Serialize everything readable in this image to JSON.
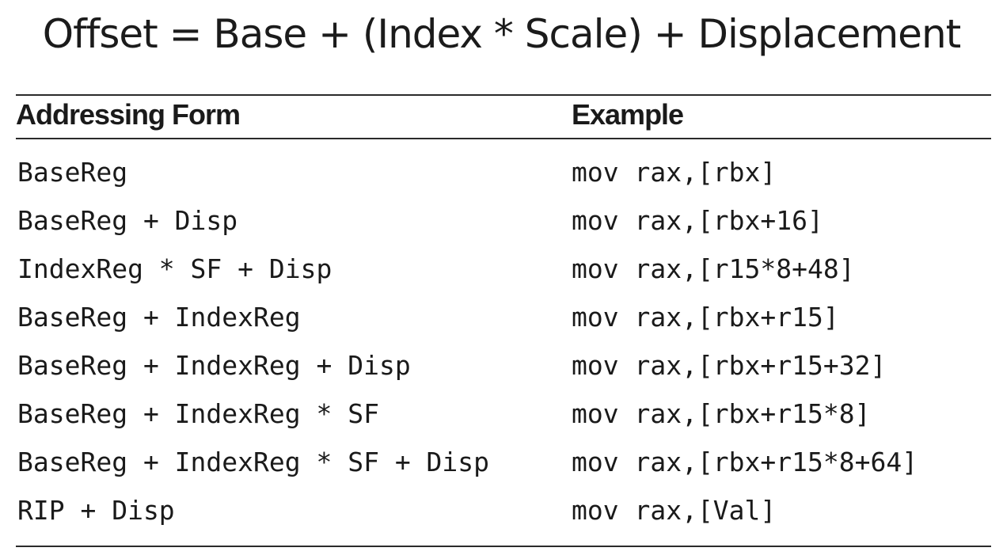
{
  "formula": "Offset = Base + (Index * Scale) + Displacement",
  "table": {
    "headers": [
      "Addressing Form",
      "Example"
    ],
    "rows": [
      {
        "form": "BaseReg",
        "example": "mov rax,[rbx]"
      },
      {
        "form": "BaseReg + Disp",
        "example": "mov rax,[rbx+16]"
      },
      {
        "form": "IndexReg * SF + Disp",
        "example": "mov rax,[r15*8+48]"
      },
      {
        "form": "BaseReg + IndexReg",
        "example": "mov rax,[rbx+r15]"
      },
      {
        "form": "BaseReg + IndexReg + Disp",
        "example": "mov rax,[rbx+r15+32]"
      },
      {
        "form": "BaseReg + IndexReg * SF",
        "example": "mov rax,[rbx+r15*8]"
      },
      {
        "form": "BaseReg + IndexReg * SF + Disp",
        "example": "mov rax,[rbx+r15*8+64]"
      },
      {
        "form": "RIP + Disp",
        "example": "mov rax,[Val]"
      }
    ]
  }
}
